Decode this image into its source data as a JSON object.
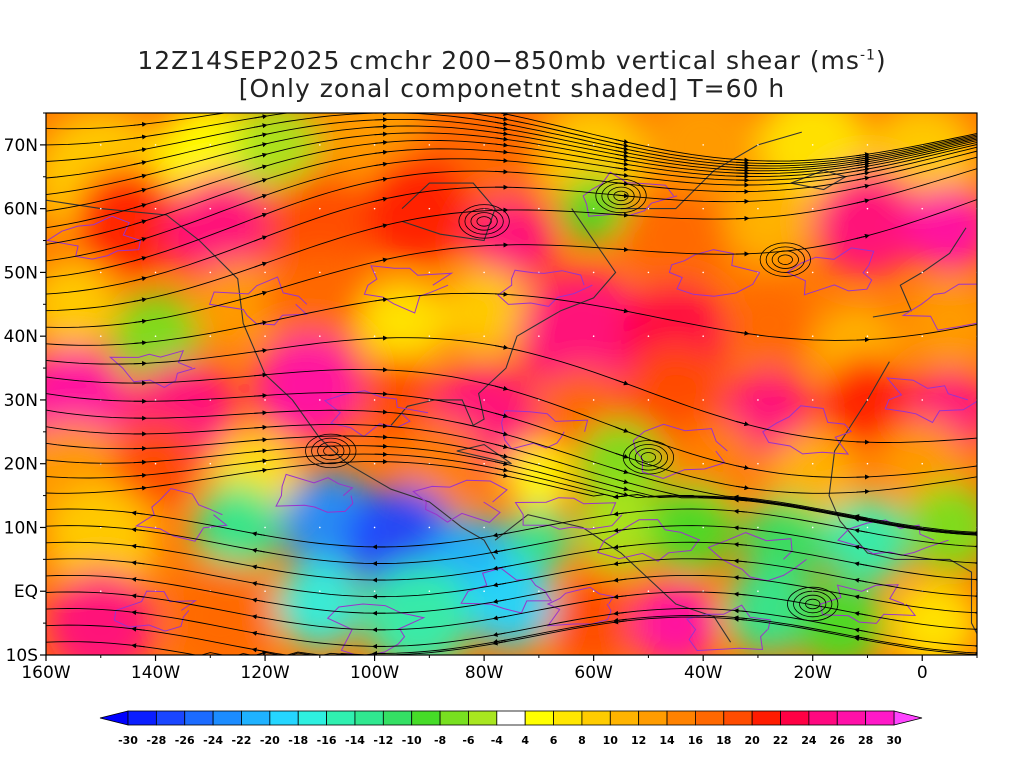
{
  "title": {
    "line1_prefix": "12Z14SEP2025 cmchr 200−850mb vertical shear (ms",
    "line1_sup": "-1",
    "line1_suffix": ")",
    "line2": "[Only zonal componetnt shaded] T=60 h"
  },
  "lat_labels": [
    "70N",
    "60N",
    "50N",
    "40N",
    "30N",
    "20N",
    "10N",
    "EQ",
    "10S"
  ],
  "lat_values": [
    70,
    60,
    50,
    40,
    30,
    20,
    10,
    0,
    -10
  ],
  "lon_labels": [
    "160W",
    "140W",
    "120W",
    "100W",
    "80W",
    "60W",
    "40W",
    "20W",
    "0"
  ],
  "lon_values": [
    -160,
    -140,
    -120,
    -100,
    -80,
    -60,
    -40,
    -20,
    0
  ],
  "extent": {
    "lon_min": -160,
    "lon_max": 10,
    "lat_min": -10,
    "lat_max": 75
  },
  "colorbar": {
    "labels": [
      "-30",
      "-28",
      "-26",
      "-24",
      "-22",
      "-20",
      "-18",
      "-16",
      "-14",
      "-12",
      "-10",
      "-8",
      "-6",
      "-4",
      "4",
      "6",
      "8",
      "10",
      "12",
      "14",
      "16",
      "18",
      "20",
      "22",
      "24",
      "26",
      "28",
      "30"
    ],
    "colors": [
      "#0a1eff",
      "#1a46ff",
      "#1c6bff",
      "#1c8cff",
      "#1fb2ff",
      "#25d6ff",
      "#2ef0e0",
      "#30f0b0",
      "#30e890",
      "#34e064",
      "#46dc28",
      "#78e020",
      "#a8e620",
      "#ffffff",
      "#ffff00",
      "#ffe600",
      "#ffcc00",
      "#ffb400",
      "#ff9c00",
      "#ff8200",
      "#ff6800",
      "#ff4c00",
      "#ff1c00",
      "#ff0044",
      "#ff0880",
      "#ff10a8",
      "#ff18c8"
    ],
    "low_arrow_color": "#0000ff",
    "high_arrow_color": "#ff44ff"
  },
  "colors": {
    "contour": "#9933cc",
    "streamline": "#000000"
  }
}
